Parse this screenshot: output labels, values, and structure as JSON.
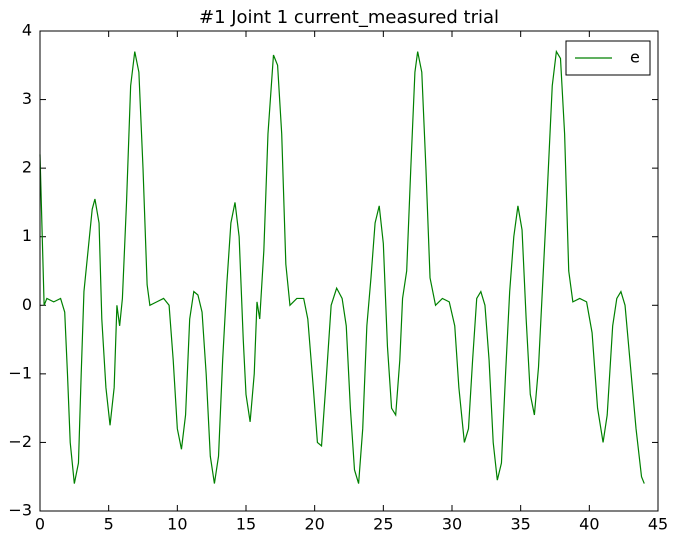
{
  "chart_data": {
    "type": "line",
    "title": "#1 Joint 1 current_measured trial",
    "x": [
      0,
      0.3,
      0.5,
      1,
      1.5,
      1.8,
      2.0,
      2.2,
      2.5,
      2.8,
      3.0,
      3.2,
      3.5,
      3.8,
      4.0,
      4.3,
      4.5,
      4.8,
      5.1,
      5.4,
      5.6,
      5.8,
      6.0,
      6.3,
      6.6,
      6.9,
      7.2,
      7.5,
      7.8,
      8.0,
      8.5,
      9.0,
      9.4,
      9.7,
      10.0,
      10.3,
      10.6,
      10.9,
      11.2,
      11.5,
      11.8,
      12.1,
      12.4,
      12.7,
      13.0,
      13.3,
      13.6,
      13.9,
      14.2,
      14.5,
      14.8,
      15.0,
      15.3,
      15.6,
      15.8,
      16.0,
      16.3,
      16.6,
      17.0,
      17.3,
      17.6,
      17.9,
      18.2,
      18.7,
      19.2,
      19.5,
      19.9,
      20.2,
      20.5,
      20.8,
      21.2,
      21.6,
      22.0,
      22.3,
      22.6,
      22.9,
      23.2,
      23.5,
      23.8,
      24.1,
      24.4,
      24.7,
      25.0,
      25.3,
      25.6,
      25.9,
      26.2,
      26.4,
      26.7,
      27.0,
      27.3,
      27.5,
      27.8,
      28.1,
      28.4,
      28.8,
      29.3,
      29.8,
      30.2,
      30.5,
      30.9,
      31.2,
      31.5,
      31.8,
      32.1,
      32.4,
      32.7,
      33.0,
      33.3,
      33.6,
      33.9,
      34.2,
      34.5,
      34.8,
      35.1,
      35.4,
      35.7,
      36.0,
      36.3,
      36.6,
      36.9,
      37.3,
      37.6,
      37.9,
      38.2,
      38.5,
      38.8,
      39.3,
      39.8,
      40.2,
      40.6,
      41.0,
      41.3,
      41.7,
      42.0,
      42.3,
      42.6,
      43.0,
      43.4,
      43.8,
      44.0
    ],
    "series": [
      {
        "name": "e",
        "color": "#008000",
        "values": [
          2.2,
          0.0,
          0.1,
          0.05,
          0.1,
          -0.1,
          -1.0,
          -2.0,
          -2.6,
          -2.3,
          -1.0,
          0.2,
          0.8,
          1.4,
          1.55,
          1.2,
          -0.2,
          -1.2,
          -1.75,
          -1.2,
          0.0,
          -0.3,
          0.1,
          1.5,
          3.2,
          3.7,
          3.4,
          2.0,
          0.3,
          0.0,
          0.05,
          0.1,
          0.0,
          -0.8,
          -1.8,
          -2.1,
          -1.6,
          -0.2,
          0.2,
          0.15,
          -0.1,
          -1.0,
          -2.2,
          -2.6,
          -2.2,
          -0.8,
          0.3,
          1.2,
          1.5,
          1.0,
          -0.5,
          -1.3,
          -1.7,
          -1.0,
          0.05,
          -0.2,
          0.8,
          2.5,
          3.65,
          3.5,
          2.5,
          0.6,
          0.0,
          0.1,
          0.1,
          -0.2,
          -1.2,
          -2.0,
          -2.05,
          -1.2,
          0.0,
          0.25,
          0.1,
          -0.3,
          -1.5,
          -2.4,
          -2.6,
          -1.8,
          -0.3,
          0.4,
          1.2,
          1.45,
          0.9,
          -0.6,
          -1.5,
          -1.6,
          -0.8,
          0.1,
          0.5,
          2.0,
          3.4,
          3.7,
          3.4,
          2.0,
          0.4,
          0.0,
          0.1,
          0.05,
          -0.3,
          -1.2,
          -2.0,
          -1.8,
          -0.8,
          0.1,
          0.2,
          0.0,
          -0.8,
          -2.0,
          -2.55,
          -2.3,
          -1.0,
          0.2,
          1.0,
          1.45,
          1.1,
          -0.2,
          -1.3,
          -1.6,
          -0.9,
          0.3,
          1.5,
          3.2,
          3.7,
          3.6,
          2.5,
          0.5,
          0.05,
          0.1,
          0.05,
          -0.4,
          -1.5,
          -2.0,
          -1.6,
          -0.3,
          0.1,
          0.2,
          0.0,
          -0.9,
          -1.8,
          -2.5,
          -2.6
        ]
      }
    ],
    "xlim": [
      0,
      45
    ],
    "xticks": [
      0,
      5,
      10,
      15,
      20,
      25,
      30,
      35,
      40,
      45
    ],
    "ylim": [
      -3,
      4
    ],
    "yticks": [
      {
        "value": -3,
        "label": "−3"
      },
      {
        "value": -2,
        "label": "−2"
      },
      {
        "value": -1,
        "label": "−1"
      },
      0,
      1,
      2,
      3,
      4
    ],
    "legend": "upper right"
  }
}
